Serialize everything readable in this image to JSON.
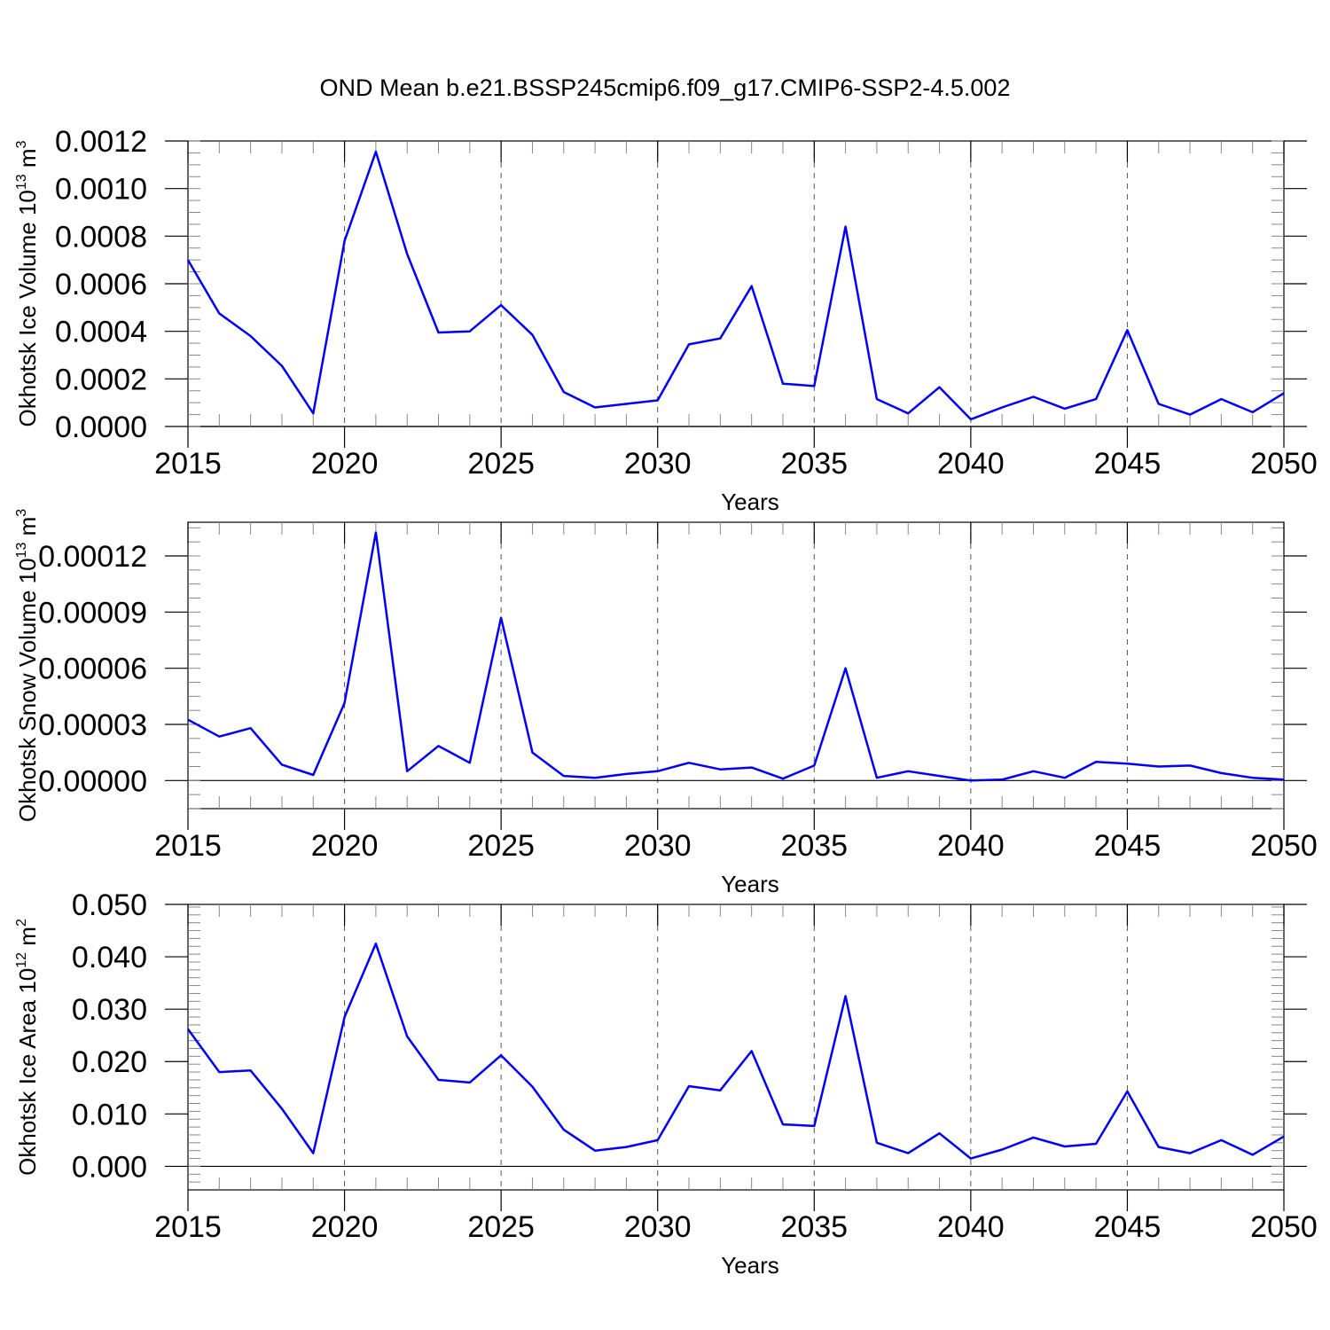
{
  "title": "OND Mean b.e21.BSSP245cmip6.f09_g17.CMIP6-SSP2-4.5.002",
  "colors": {
    "line": "#0000ff",
    "axis": "#000000",
    "grid": "#555555"
  },
  "chart_data": [
    {
      "type": "line",
      "ylabel": {
        "base": "Okhotsk Ice Volume 10",
        "exp": "13",
        "unit": " m",
        "unit_exp": "3"
      },
      "xlabel": "Years",
      "xlim": [
        2015,
        2050
      ],
      "ylim": [
        0.0,
        0.0012
      ],
      "yticks": [
        {
          "v": 0.0,
          "t": "0.0000"
        },
        {
          "v": 0.0002,
          "t": "0.0002"
        },
        {
          "v": 0.0004,
          "t": "0.0004"
        },
        {
          "v": 0.0006,
          "t": "0.0006"
        },
        {
          "v": 0.0008,
          "t": "0.0008"
        },
        {
          "v": 0.001,
          "t": "0.0010"
        },
        {
          "v": 0.0012,
          "t": "0.0012"
        }
      ],
      "yminor": 5e-05,
      "xticks": [
        {
          "v": 2015,
          "t": "2015"
        },
        {
          "v": 2020,
          "t": "2020"
        },
        {
          "v": 2025,
          "t": "2025"
        },
        {
          "v": 2030,
          "t": "2030"
        },
        {
          "v": 2035,
          "t": "2035"
        },
        {
          "v": 2040,
          "t": "2040"
        },
        {
          "v": 2045,
          "t": "2045"
        },
        {
          "v": 2050,
          "t": "2050"
        }
      ],
      "grid_x": [
        2020,
        2025,
        2030,
        2035,
        2040,
        2045
      ],
      "x": [
        2015,
        2016,
        2017,
        2018,
        2019,
        2020,
        2021,
        2022,
        2023,
        2024,
        2025,
        2026,
        2027,
        2028,
        2029,
        2030,
        2031,
        2032,
        2033,
        2034,
        2035,
        2036,
        2037,
        2038,
        2039,
        2040,
        2041,
        2042,
        2043,
        2044,
        2045,
        2046,
        2047,
        2048,
        2049,
        2050
      ],
      "series": [
        {
          "values": [
            0.0007,
            0.000475,
            0.00038,
            0.000255,
            5.5e-05,
            0.00078,
            0.001155,
            0.000725,
            0.000395,
            0.0004,
            0.00051,
            0.000385,
            0.000145,
            8e-05,
            9.5e-05,
            0.00011,
            0.000345,
            0.00037,
            0.00059,
            0.00018,
            0.00017,
            0.00084,
            0.000115,
            5.5e-05,
            0.000165,
            3e-05,
            8e-05,
            0.000125,
            7.5e-05,
            0.000115,
            0.000405,
            9.5e-05,
            5e-05,
            0.000115,
            6e-05,
            0.00014
          ]
        }
      ]
    },
    {
      "type": "line",
      "ylabel": {
        "base": "Okhotsk Snow Volume 10",
        "exp": "13",
        "unit": " m",
        "unit_exp": "3"
      },
      "xlabel": "Years",
      "xlim": [
        2015,
        2050
      ],
      "ylim": [
        -1.5e-05,
        0.000138
      ],
      "yticks": [
        {
          "v": 0.0,
          "t": "0.00000"
        },
        {
          "v": 3e-05,
          "t": "0.00003"
        },
        {
          "v": 6e-05,
          "t": "0.00006"
        },
        {
          "v": 9e-05,
          "t": "0.00009"
        },
        {
          "v": 0.00012,
          "t": "0.00012"
        }
      ],
      "yminor": 7.5e-06,
      "xticks": [
        {
          "v": 2015,
          "t": "2015"
        },
        {
          "v": 2020,
          "t": "2020"
        },
        {
          "v": 2025,
          "t": "2025"
        },
        {
          "v": 2030,
          "t": "2030"
        },
        {
          "v": 2035,
          "t": "2035"
        },
        {
          "v": 2040,
          "t": "2040"
        },
        {
          "v": 2045,
          "t": "2045"
        },
        {
          "v": 2050,
          "t": "2050"
        }
      ],
      "grid_x": [
        2020,
        2025,
        2030,
        2035,
        2040,
        2045
      ],
      "x": [
        2015,
        2016,
        2017,
        2018,
        2019,
        2020,
        2021,
        2022,
        2023,
        2024,
        2025,
        2026,
        2027,
        2028,
        2029,
        2030,
        2031,
        2032,
        2033,
        2034,
        2035,
        2036,
        2037,
        2038,
        2039,
        2040,
        2041,
        2042,
        2043,
        2044,
        2045,
        2046,
        2047,
        2048,
        2049,
        2050
      ],
      "series": [
        {
          "values": [
            3.25e-05,
            2.35e-05,
            2.8e-05,
            8.5e-06,
            3e-06,
            4.15e-05,
            0.0001325,
            5e-06,
            1.85e-05,
            9.5e-06,
            8.7e-05,
            1.5e-05,
            2.5e-06,
            1.5e-06,
            3.5e-06,
            5e-06,
            9.5e-06,
            6e-06,
            7e-06,
            1e-06,
            8e-06,
            6e-05,
            1.5e-06,
            5e-06,
            2.5e-06,
            0.0,
            5e-07,
            5e-06,
            1.5e-06,
            1e-05,
            9e-06,
            7.5e-06,
            8e-06,
            4e-06,
            1.5e-06,
            5e-07
          ]
        }
      ]
    },
    {
      "type": "line",
      "ylabel": {
        "base": "Okhotsk Ice Area 10",
        "exp": "12",
        "unit": " m",
        "unit_exp": "2"
      },
      "xlabel": "Years",
      "xlim": [
        2015,
        2050
      ],
      "ylim": [
        -0.0045,
        0.05
      ],
      "yticks": [
        {
          "v": 0.0,
          "t": "0.000"
        },
        {
          "v": 0.01,
          "t": "0.010"
        },
        {
          "v": 0.02,
          "t": "0.020"
        },
        {
          "v": 0.03,
          "t": "0.030"
        },
        {
          "v": 0.04,
          "t": "0.040"
        },
        {
          "v": 0.05,
          "t": "0.050"
        }
      ],
      "yminor": 0.0015,
      "xticks": [
        {
          "v": 2015,
          "t": "2015"
        },
        {
          "v": 2020,
          "t": "2020"
        },
        {
          "v": 2025,
          "t": "2025"
        },
        {
          "v": 2030,
          "t": "2030"
        },
        {
          "v": 2035,
          "t": "2035"
        },
        {
          "v": 2040,
          "t": "2040"
        },
        {
          "v": 2045,
          "t": "2045"
        },
        {
          "v": 2050,
          "t": "2050"
        }
      ],
      "grid_x": [
        2020,
        2025,
        2030,
        2035,
        2040,
        2045
      ],
      "x": [
        2015,
        2016,
        2017,
        2018,
        2019,
        2020,
        2021,
        2022,
        2023,
        2024,
        2025,
        2026,
        2027,
        2028,
        2029,
        2030,
        2031,
        2032,
        2033,
        2034,
        2035,
        2036,
        2037,
        2038,
        2039,
        2040,
        2041,
        2042,
        2043,
        2044,
        2045,
        2046,
        2047,
        2048,
        2049,
        2050
      ],
      "series": [
        {
          "values": [
            0.0262,
            0.018,
            0.0183,
            0.011,
            0.0025,
            0.0285,
            0.0425,
            0.0248,
            0.0165,
            0.016,
            0.0212,
            0.0152,
            0.007,
            0.003,
            0.0037,
            0.005,
            0.0153,
            0.0145,
            0.022,
            0.008,
            0.0077,
            0.0325,
            0.0045,
            0.0025,
            0.0063,
            0.0015,
            0.0032,
            0.0055,
            0.0038,
            0.0043,
            0.0143,
            0.0037,
            0.0025,
            0.005,
            0.0022,
            0.0057
          ]
        }
      ]
    }
  ]
}
